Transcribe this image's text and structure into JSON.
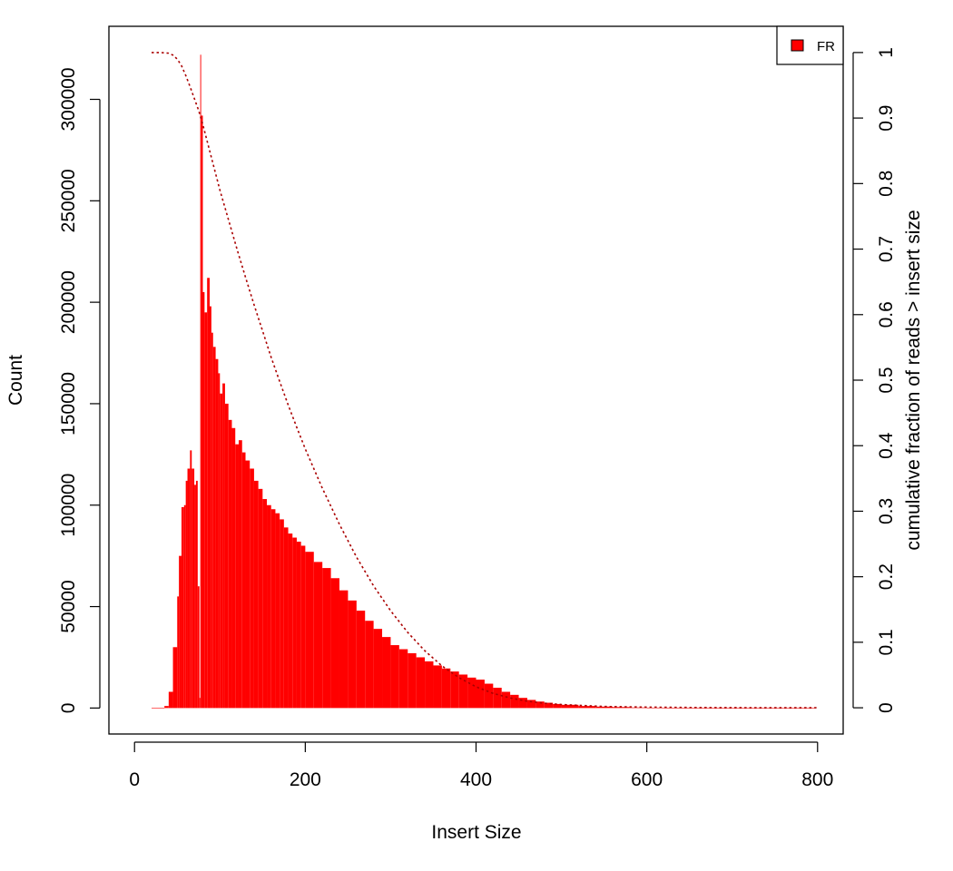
{
  "chart_data": {
    "type": "bar",
    "title": "",
    "xlabel": "Insert Size",
    "ylabel": "Count",
    "y2label": "cumulative fraction of reads > insert size",
    "xlim": [
      -30,
      830
    ],
    "ylim": [
      -12800,
      336000
    ],
    "y2lim": [
      -0.04,
      1.04
    ],
    "xticks": [
      0,
      200,
      400,
      600,
      800
    ],
    "xtick_labels": [
      "0",
      "200",
      "400",
      "600",
      "800"
    ],
    "yticks": [
      0,
      50000,
      100000,
      150000,
      200000,
      250000,
      300000
    ],
    "ytick_labels": [
      "0",
      "50000",
      "100000",
      "150000",
      "200000",
      "250000",
      "300000"
    ],
    "y2ticks": [
      0,
      0.1,
      0.2,
      0.3,
      0.4,
      0.5,
      0.6,
      0.7,
      0.8,
      0.9,
      1
    ],
    "y2tick_labels": [
      "0",
      "0.1",
      "0.2",
      "0.3",
      "0.4",
      "0.5",
      "0.6",
      "0.7",
      "0.8",
      "0.9",
      "1"
    ],
    "grid": false,
    "legend": {
      "position": "top-right",
      "entries": [
        {
          "label": "FR",
          "color": "#ff0000"
        }
      ]
    },
    "colors": {
      "bars": "#ff0000",
      "cumulative_line": "#aa0000"
    },
    "series": [
      {
        "name": "FR",
        "kind": "histogram",
        "x": [
          20,
          35,
          40,
          45,
          50,
          52,
          55,
          58,
          60,
          62,
          65,
          67,
          70,
          72,
          74,
          76,
          77,
          78,
          80,
          82,
          85,
          88,
          90,
          92,
          95,
          98,
          100,
          103,
          106,
          110,
          114,
          118,
          122,
          126,
          130,
          135,
          140,
          145,
          150,
          155,
          160,
          165,
          170,
          175,
          180,
          185,
          190,
          195,
          200,
          210,
          220,
          230,
          240,
          250,
          260,
          270,
          280,
          290,
          300,
          310,
          320,
          330,
          340,
          350,
          360,
          370,
          380,
          390,
          400,
          410,
          420,
          430,
          440,
          450,
          460,
          470,
          480,
          490,
          500,
          520,
          540,
          560,
          580,
          600,
          620,
          640,
          660,
          680,
          700,
          720,
          740,
          760,
          780,
          795
        ],
        "values": [
          0,
          1000,
          8000,
          30000,
          55000,
          75000,
          99000,
          100000,
          112000,
          118000,
          127000,
          118000,
          110000,
          112000,
          60000,
          5000,
          322000,
          292000,
          205000,
          195000,
          212000,
          198000,
          185000,
          178000,
          172000,
          165000,
          155000,
          160000,
          150000,
          142000,
          138000,
          130000,
          132000,
          126000,
          122000,
          118000,
          112000,
          108000,
          103000,
          100000,
          98000,
          96000,
          93000,
          89000,
          86000,
          84000,
          82000,
          80000,
          77000,
          72000,
          69000,
          64000,
          58000,
          53000,
          48000,
          43000,
          39000,
          35000,
          31000,
          29000,
          27000,
          25000,
          23000,
          21000,
          19500,
          18000,
          16500,
          15000,
          14000,
          12000,
          10000,
          8000,
          6500,
          5000,
          4000,
          3200,
          2600,
          2000,
          1600,
          1000,
          700,
          500,
          300,
          200,
          120,
          80,
          50,
          30,
          20,
          10,
          5,
          2,
          1,
          0
        ]
      },
      {
        "name": "cumulative fraction of reads > insert size",
        "kind": "line",
        "style": "dotted",
        "x": [
          20,
          30,
          40,
          45,
          50,
          55,
          60,
          65,
          70,
          75,
          80,
          90,
          100,
          110,
          120,
          130,
          140,
          150,
          160,
          170,
          180,
          190,
          200,
          220,
          240,
          260,
          280,
          300,
          320,
          340,
          360,
          380,
          400,
          420,
          440,
          460,
          480,
          500,
          550,
          600,
          650,
          700,
          750,
          800
        ],
        "values": [
          1.0,
          1.0,
          0.999,
          0.996,
          0.99,
          0.98,
          0.965,
          0.948,
          0.93,
          0.912,
          0.89,
          0.84,
          0.79,
          0.745,
          0.7,
          0.657,
          0.615,
          0.575,
          0.535,
          0.498,
          0.462,
          0.428,
          0.395,
          0.335,
          0.28,
          0.23,
          0.186,
          0.148,
          0.115,
          0.087,
          0.064,
          0.046,
          0.032,
          0.022,
          0.015,
          0.01,
          0.007,
          0.005,
          0.002,
          0.001,
          0.0005,
          0.0002,
          0.0001,
          0.0
        ]
      }
    ]
  }
}
